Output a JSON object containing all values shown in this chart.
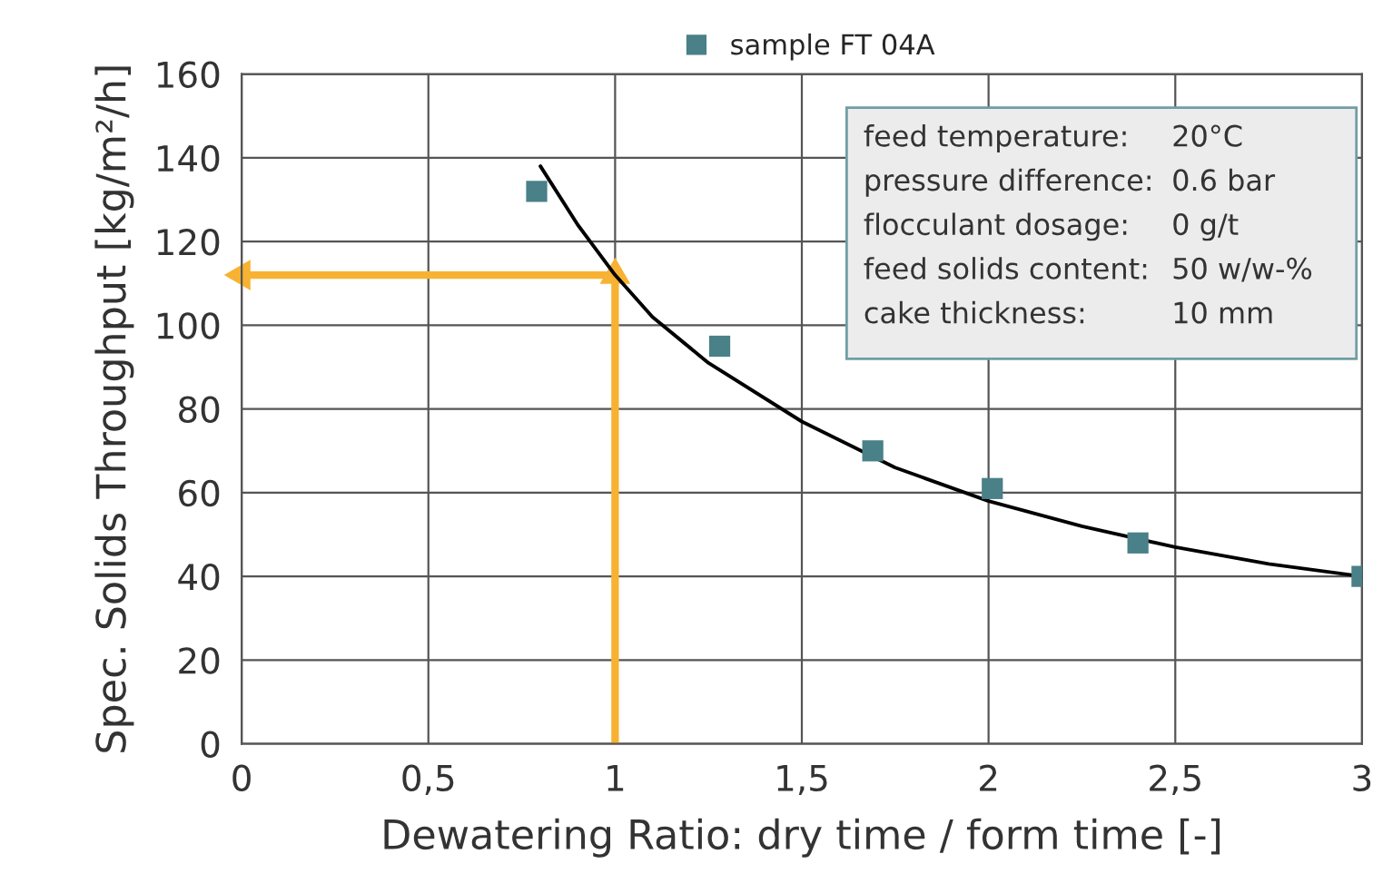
{
  "chart_data": {
    "type": "scatter",
    "xlabel": "Dewatering Ratio: dry time / form time [-]",
    "ylabel": "Spec. Solids Throughput [kg/m²/h]",
    "series": [
      {
        "name": "sample FT 04A",
        "type": "scatter",
        "color": "#4a8088",
        "marker": "square",
        "x": [
          0.79,
          1.28,
          1.69,
          2.01,
          2.4,
          3.0
        ],
        "values": [
          132,
          95,
          70,
          61,
          48,
          40
        ]
      },
      {
        "type": "line",
        "color": "#000000",
        "marker": "none",
        "x": [
          0.8,
          0.9,
          1.0,
          1.1,
          1.25,
          1.5,
          1.75,
          2.0,
          2.25,
          2.5,
          2.75,
          3.0
        ],
        "values": [
          138,
          124,
          112,
          102,
          91,
          77,
          66,
          58,
          52,
          47,
          43,
          40
        ]
      },
      {
        "type": "line",
        "color": "#f7b233",
        "marker": "triangle",
        "x": [
          1.0,
          1.0,
          0.0
        ],
        "values": [
          0,
          112,
          112
        ]
      }
    ],
    "annotations": [
      "feed temperature: 20°C",
      "pressure difference: 0.6 bar",
      "flocculant dosage: 0 g/t",
      "feed solids content: 50 w/w-%",
      "cake thickness: 10 mm"
    ],
    "xlim": [
      0,
      3
    ],
    "xticks": [
      0,
      {
        "value": 0.5,
        "label": "0,5"
      },
      1,
      {
        "value": 1.5,
        "label": "1,5"
      },
      2,
      {
        "value": 2.5,
        "label": "2,5"
      },
      3
    ],
    "ylim": [
      0,
      160
    ],
    "yticks": [
      0,
      20,
      40,
      60,
      80,
      100,
      120,
      140,
      160
    ],
    "grid": true,
    "legend": "top"
  }
}
